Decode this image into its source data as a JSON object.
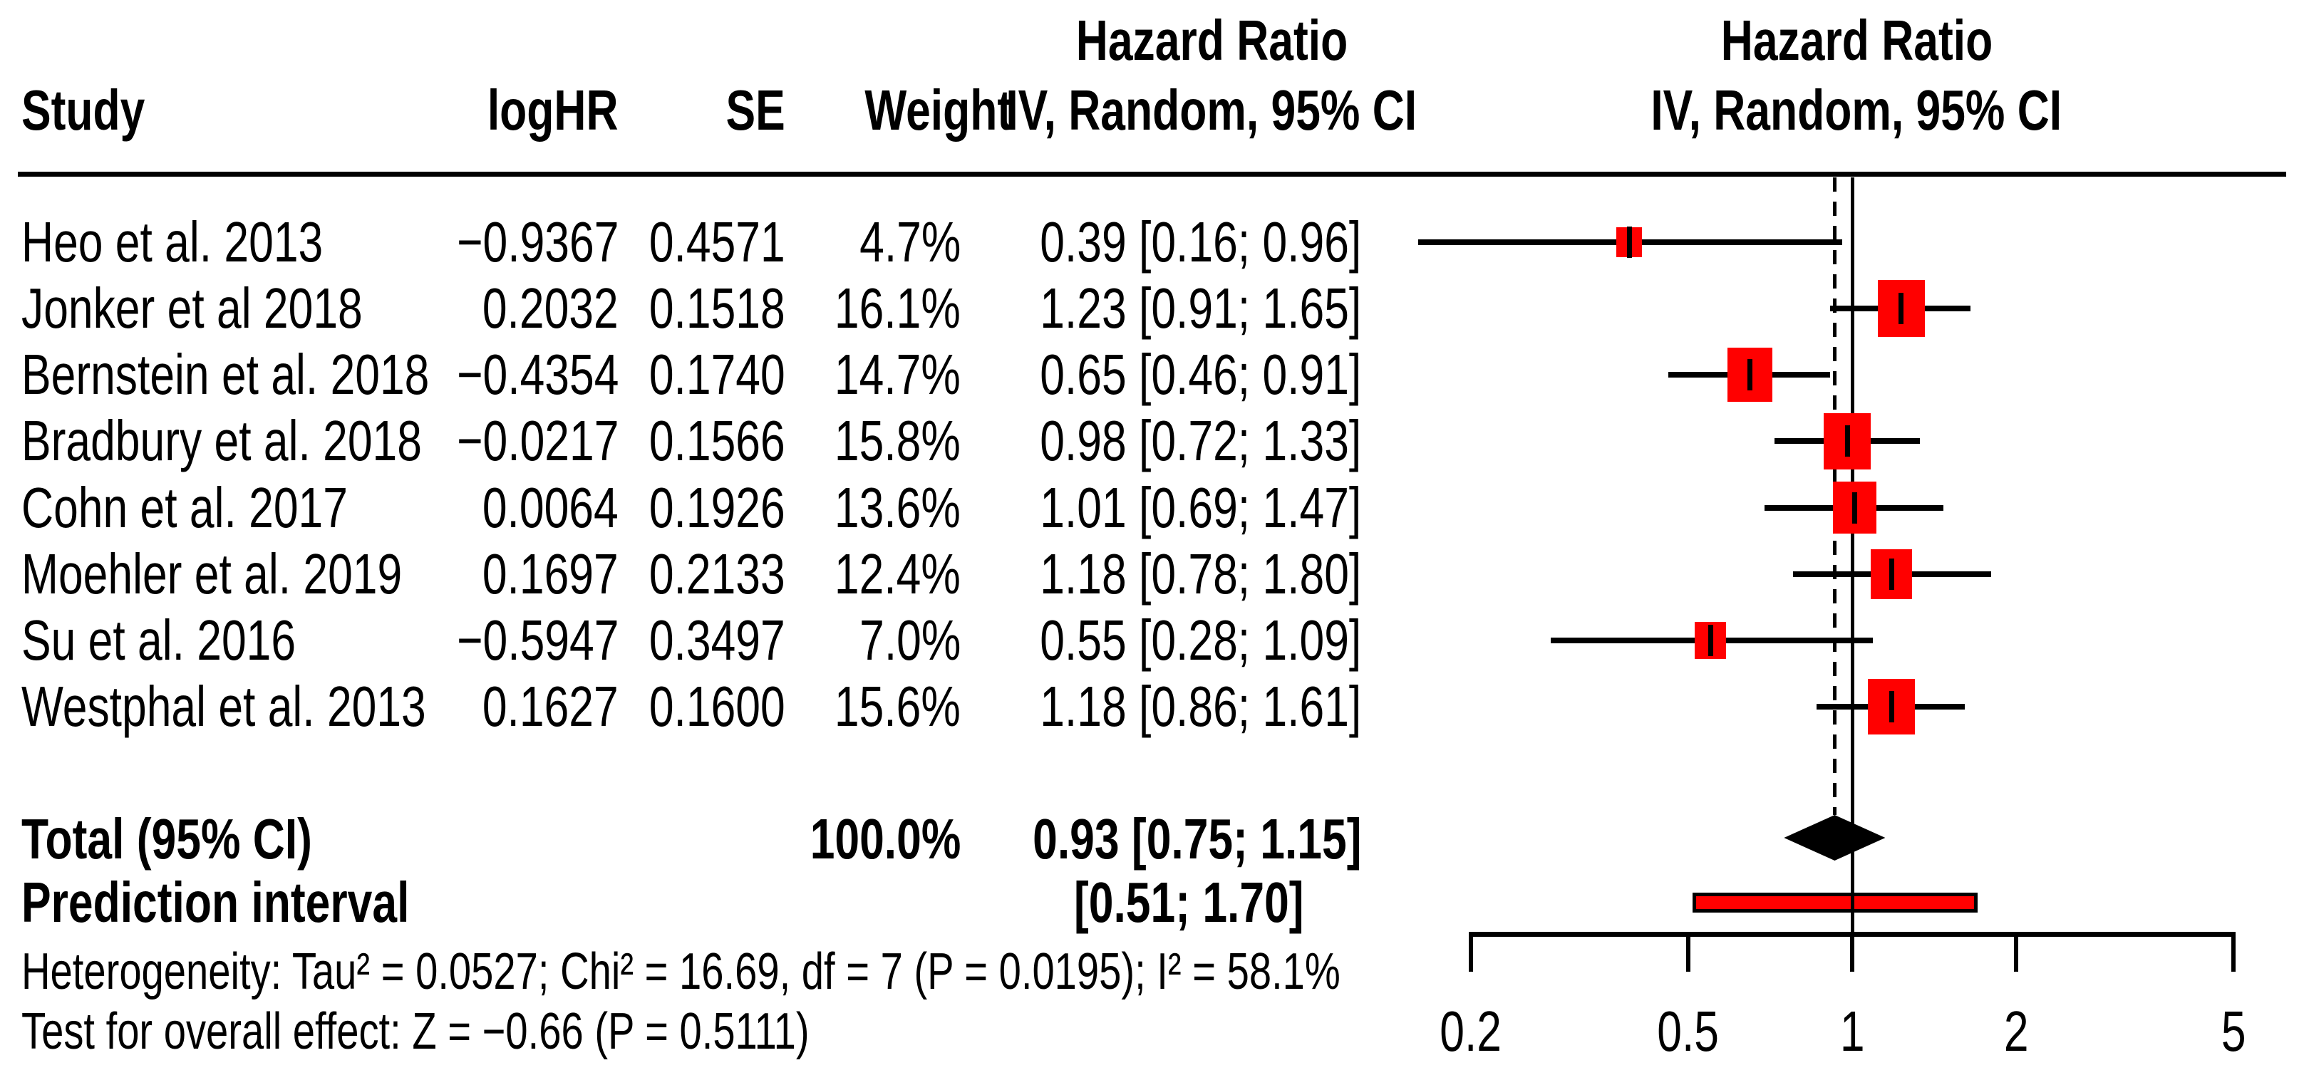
{
  "columns": {
    "study": "Study",
    "loghr": "logHR",
    "se": "SE",
    "weight": "Weight",
    "hr_table": {
      "line1": "Hazard Ratio",
      "line2": "IV, Random, 95% CI"
    },
    "hr_plot": {
      "line1": "Hazard Ratio",
      "line2": "IV, Random, 95% CI"
    }
  },
  "footer": {
    "heterogeneity": "Heterogeneity: Tau² = 0.0527; Chi² = 16.69, df = 7 (P = 0.0195); I² = 58.1%",
    "overall_effect": "Test for overall effect: Z = −0.66 (P = 0.5111)"
  },
  "colors": {
    "marker": "#FF0000",
    "line": "#000000",
    "background": "#FFFFFF"
  },
  "chart_data": {
    "type": "scatter",
    "subtype": "forest-plot",
    "x_scale": "log10",
    "x_domain": [
      0.2,
      5
    ],
    "x_ticks": [
      "0.2",
      "0.5",
      "1",
      "2",
      "5"
    ],
    "reference_value": 1,
    "pooled_value": 0.93,
    "legend": "none",
    "studies": [
      {
        "name": "Heo et al. 2013",
        "logHR": "−0.9367",
        "SE": "0.4571",
        "weight": "4.7%",
        "weight_value": 4.7,
        "hr": 0.39,
        "ci_low": 0.16,
        "ci_high": 0.96,
        "hr_ci_text": "0.39 [0.16; 0.96]"
      },
      {
        "name": "Jonker et al 2018",
        "logHR": "0.2032",
        "SE": "0.1518",
        "weight": "16.1%",
        "weight_value": 16.1,
        "hr": 1.23,
        "ci_low": 0.91,
        "ci_high": 1.65,
        "hr_ci_text": "1.23 [0.91; 1.65]"
      },
      {
        "name": "Bernstein et al. 2018",
        "logHR": "−0.4354",
        "SE": "0.1740",
        "weight": "14.7%",
        "weight_value": 14.7,
        "hr": 0.65,
        "ci_low": 0.46,
        "ci_high": 0.91,
        "hr_ci_text": "0.65 [0.46; 0.91]"
      },
      {
        "name": "Bradbury et al. 2018",
        "logHR": "−0.0217",
        "SE": "0.1566",
        "weight": "15.8%",
        "weight_value": 15.8,
        "hr": 0.98,
        "ci_low": 0.72,
        "ci_high": 1.33,
        "hr_ci_text": "0.98 [0.72; 1.33]"
      },
      {
        "name": "Cohn et al. 2017",
        "logHR": "0.0064",
        "SE": "0.1926",
        "weight": "13.6%",
        "weight_value": 13.6,
        "hr": 1.01,
        "ci_low": 0.69,
        "ci_high": 1.47,
        "hr_ci_text": "1.01 [0.69; 1.47]"
      },
      {
        "name": "Moehler et al. 2019",
        "logHR": "0.1697",
        "SE": "0.2133",
        "weight": "12.4%",
        "weight_value": 12.4,
        "hr": 1.18,
        "ci_low": 0.78,
        "ci_high": 1.8,
        "hr_ci_text": "1.18 [0.78; 1.80]"
      },
      {
        "name": "Su et al. 2016",
        "logHR": "−0.5947",
        "SE": "0.3497",
        "weight": "7.0%",
        "weight_value": 7.0,
        "hr": 0.55,
        "ci_low": 0.28,
        "ci_high": 1.09,
        "hr_ci_text": "0.55 [0.28; 1.09]"
      },
      {
        "name": "Westphal et al. 2013",
        "logHR": "0.1627",
        "SE": "0.1600",
        "weight": "15.6%",
        "weight_value": 15.6,
        "hr": 1.18,
        "ci_low": 0.86,
        "ci_high": 1.61,
        "hr_ci_text": "1.18 [0.86; 1.61]"
      }
    ],
    "total": {
      "label": "Total (95% CI)",
      "weight": "100.0%",
      "hr": 0.93,
      "ci_low": 0.75,
      "ci_high": 1.15,
      "hr_ci_text": "0.93 [0.75; 1.15]"
    },
    "prediction": {
      "label": "Prediction interval",
      "low": 0.51,
      "high": 1.7,
      "ci_text": "[0.51; 1.70]"
    },
    "stats": {
      "tau2": 0.0527,
      "chi2": 16.69,
      "df": 7,
      "p_heterogeneity": 0.0195,
      "i2": "58.1%",
      "z": -0.66,
      "p_overall": 0.5111
    }
  }
}
